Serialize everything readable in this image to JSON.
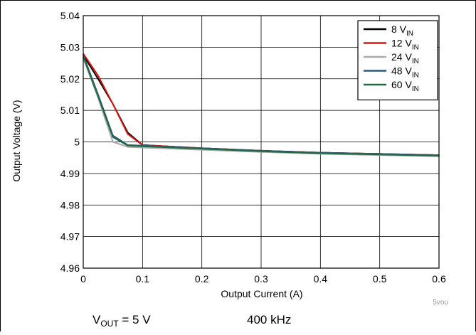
{
  "chart_data": {
    "type": "line",
    "title": "",
    "xlabel": "Output Current (A)",
    "ylabel": "Output Voltage (V)",
    "xlim": [
      0,
      0.6
    ],
    "ylim": [
      4.96,
      5.04
    ],
    "x_ticks": [
      "0",
      "0.1",
      "0.2",
      "0.3",
      "0.4",
      "0.5",
      "0.6"
    ],
    "y_ticks": [
      "4.96",
      "4.97",
      "4.98",
      "4.99",
      "5",
      "5.01",
      "5.02",
      "5.03",
      "5.04"
    ],
    "grid": true,
    "legend_position": "top-right",
    "series": [
      {
        "name": "8 V",
        "sub": "IN",
        "color": "#000000",
        "points": [
          [
            0,
            5.0275
          ],
          [
            0.025,
            5.02
          ],
          [
            0.05,
            5.012
          ],
          [
            0.075,
            5.003
          ],
          [
            0.1,
            4.999
          ],
          [
            0.2,
            4.998
          ],
          [
            0.3,
            4.9972
          ],
          [
            0.4,
            4.9966
          ],
          [
            0.5,
            4.9962
          ],
          [
            0.6,
            4.9958
          ]
        ]
      },
      {
        "name": "12 V",
        "sub": "IN",
        "color": "#dd1111",
        "points": [
          [
            0,
            5.028
          ],
          [
            0.025,
            5.021
          ],
          [
            0.05,
            5.012
          ],
          [
            0.075,
            5.0025
          ],
          [
            0.1,
            4.999
          ],
          [
            0.2,
            4.998
          ],
          [
            0.3,
            4.9972
          ],
          [
            0.4,
            4.9966
          ],
          [
            0.5,
            4.9962
          ],
          [
            0.6,
            4.9958
          ]
        ]
      },
      {
        "name": "24 V",
        "sub": "IN",
        "color": "#aaaaaa",
        "points": [
          [
            0,
            5.0265
          ],
          [
            0.025,
            5.014
          ],
          [
            0.05,
            5.0
          ],
          [
            0.075,
            4.9984
          ],
          [
            0.1,
            4.9982
          ],
          [
            0.2,
            4.9975
          ],
          [
            0.3,
            4.9968
          ],
          [
            0.4,
            4.9962
          ],
          [
            0.5,
            4.9958
          ],
          [
            0.6,
            4.9954
          ]
        ]
      },
      {
        "name": "48 V",
        "sub": "IN",
        "color": "#2f5a75",
        "points": [
          [
            0,
            5.0275
          ],
          [
            0.025,
            5.015
          ],
          [
            0.05,
            5.002
          ],
          [
            0.075,
            4.999
          ],
          [
            0.1,
            4.9988
          ],
          [
            0.2,
            4.998
          ],
          [
            0.3,
            4.9972
          ],
          [
            0.4,
            4.9966
          ],
          [
            0.5,
            4.9962
          ],
          [
            0.6,
            4.9958
          ]
        ]
      },
      {
        "name": "60 V",
        "sub": "IN",
        "color": "#1f6b45",
        "points": [
          [
            0,
            5.027
          ],
          [
            0.025,
            5.0145
          ],
          [
            0.05,
            5.0015
          ],
          [
            0.075,
            4.9988
          ],
          [
            0.1,
            4.9986
          ],
          [
            0.2,
            4.9978
          ],
          [
            0.3,
            4.997
          ],
          [
            0.4,
            4.9964
          ],
          [
            0.5,
            4.996
          ],
          [
            0.6,
            4.9956
          ]
        ]
      }
    ]
  },
  "conditions": {
    "vout_main": "V",
    "vout_sub": "OUT",
    "vout_rest": " = 5 V",
    "freq": "400 kHz"
  },
  "figure_id": "5vou"
}
